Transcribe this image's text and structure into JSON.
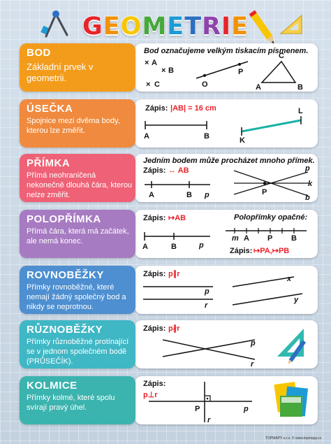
{
  "title": "GEOMETRIE",
  "title_colors": [
    "#e8232a",
    "#f39200",
    "#f7c600",
    "#47a83c",
    "#1d9bd7",
    "#2b6fc2",
    "#8e44ad",
    "#e8232a",
    "#f39200"
  ],
  "sections": [
    {
      "heading": "BOD",
      "text": "Základní prvek v geometrii.",
      "color": "#f39c1c",
      "note": "Bod označujeme velkým tiskacím písmenem.",
      "labels": {
        "a": "A",
        "b": "B",
        "c": "C",
        "o": "O",
        "p": "P",
        "ta": "A",
        "tb": "B",
        "tc": "C"
      }
    },
    {
      "heading": "ÚSEČKA",
      "text": "Spojnice mezi dvěma body, kterou lze změřit.",
      "color": "#f08a3e",
      "zapis": "Zápis:",
      "formula": "|AB| = 16 cm",
      "labels": {
        "a": "A",
        "b": "B",
        "k": "K",
        "l": "L"
      }
    },
    {
      "heading": "PŘÍMKA",
      "text": "Přímá neohraničená nekonečně dlouhá čára, kterou nelze změřit.",
      "color": "#ef6176",
      "zapis": "Zápis:",
      "formula": "↔ AB",
      "note": "Jedním bodem může procházet mnoho přímek.",
      "labels": {
        "a": "A",
        "b": "B",
        "p": "p",
        "pp": "P",
        "ps": "p",
        "ks": "k",
        "bs": "b"
      }
    },
    {
      "heading": "POLOPŘÍMKA",
      "text": "Přímá čára, která má začátek, ale nemá konec.",
      "color": "#a77bc2",
      "zapis": "Zápis:",
      "formula": "↦AB",
      "note": "Polopřímky opačné:",
      "zapis2": "Zápis:",
      "formula2": "↦PA,↦PB",
      "labels": {
        "a": "A",
        "b": "B",
        "p": "p",
        "m": "m",
        "pa": "A",
        "pp": "P",
        "pb": "B"
      }
    },
    {
      "heading": "ROVNOBĚŽKY",
      "text": "Přímky rovnoběžné, které nemají žádný společný bod a nikdy se neprotnou.",
      "color": "#4d8fd0",
      "zapis": "Zápis:",
      "formula": "p∥r",
      "labels": {
        "p": "p",
        "r": "r",
        "x": "x",
        "y": "y"
      }
    },
    {
      "heading": "RŮZNOBĚŽKY",
      "text": "Přímky různoběžné protínající se v jednom společném bodě (PRŮSEČÍK).",
      "color": "#3fb7c5",
      "zapis": "Zápis:",
      "formula": "p∦r",
      "labels": {
        "p": "p",
        "r": "r"
      }
    },
    {
      "heading": "KOLMICE",
      "text": "Přímky kolmé, které spolu svírají pravý úhel.",
      "color": "#3bb3ae",
      "zapis": "Zápis:",
      "formula": "p⊥r",
      "labels": {
        "p": "p",
        "pp": "P",
        "r": "r"
      }
    }
  ],
  "footer": "TOPMAPY s.r.o. © www.topmapy.cz",
  "watermark": "www.topmapy.cz"
}
